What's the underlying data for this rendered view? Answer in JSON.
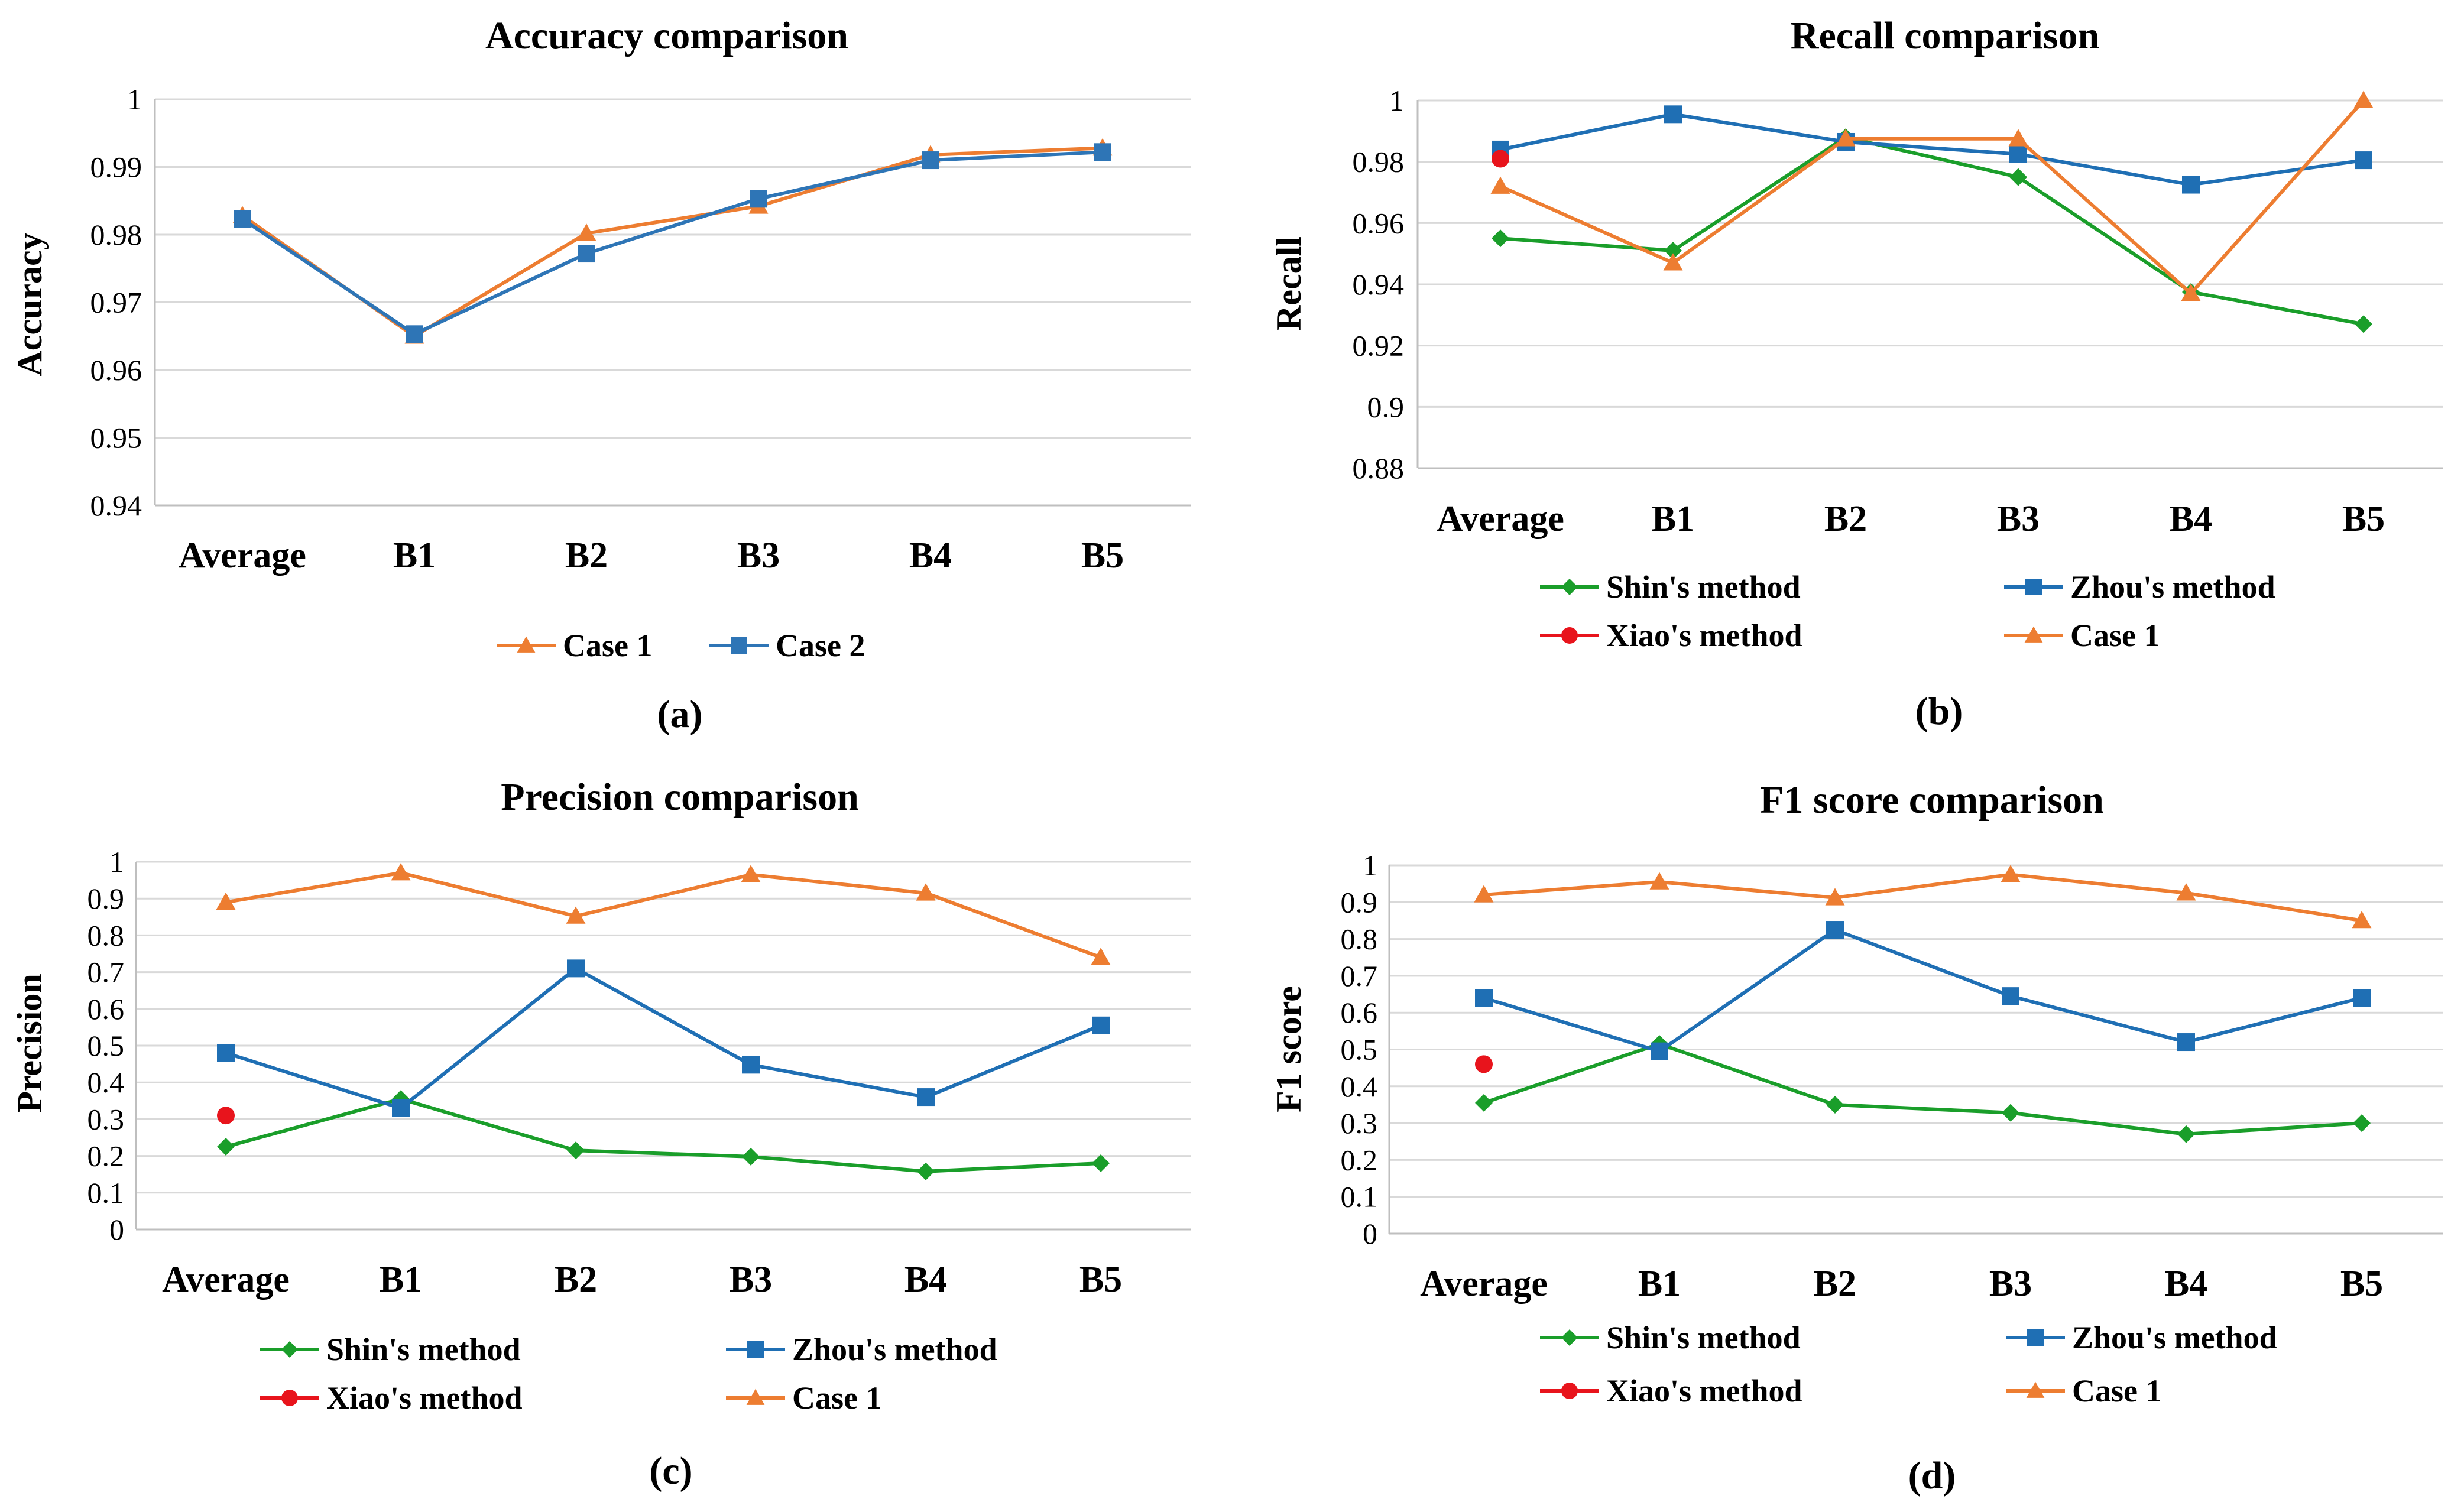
{
  "colors": {
    "case1": "#ED7D31",
    "case2": "#2E75B6",
    "zhou": "#1F6FB4",
    "shin": "#1A9E2A",
    "xiao": "#E8141C",
    "grid": "#D9D9D9"
  },
  "chart_data": [
    {
      "id": "a",
      "type": "line",
      "title": "Accuracy comparison",
      "ylabel": "Accuracy",
      "xlabel": "",
      "caption": "(a)",
      "categories": [
        "Average",
        "B1",
        "B2",
        "B3",
        "B4",
        "B5"
      ],
      "ylim": [
        0.94,
        1
      ],
      "yticks": [
        0.94,
        0.95,
        0.96,
        0.97,
        0.98,
        0.99,
        1
      ],
      "ytick_labels": [
        "0.94",
        "0.95",
        "0.96",
        "0.97",
        "0.98",
        "0.99",
        "1"
      ],
      "grid": true,
      "legend_position": "bottom",
      "series": [
        {
          "name": "Case 1",
          "color": "#ED7D31",
          "marker": "triangle",
          "values": [
            0.9828,
            0.965,
            0.9802,
            0.9842,
            0.9918,
            0.9928
          ]
        },
        {
          "name": "Case 2",
          "color": "#2E75B6",
          "marker": "square",
          "values": [
            0.9823,
            0.9653,
            0.9772,
            0.9853,
            0.991,
            0.9922
          ]
        }
      ]
    },
    {
      "id": "b",
      "type": "line",
      "title": "Recall comparison",
      "ylabel": "Recall",
      "xlabel": "",
      "caption": "(b)",
      "categories": [
        "Average",
        "B1",
        "B2",
        "B3",
        "B4",
        "B5"
      ],
      "ylim": [
        0.88,
        1
      ],
      "yticks": [
        0.88,
        0.9,
        0.92,
        0.94,
        0.96,
        0.98,
        1
      ],
      "ytick_labels": [
        "0.88",
        "0.9",
        "0.92",
        "0.94",
        "0.96",
        "0.98",
        "1"
      ],
      "grid": true,
      "legend_position": "bottom",
      "series": [
        {
          "name": "Shin's method",
          "color": "#1A9E2A",
          "marker": "diamond",
          "values": [
            0.955,
            0.951,
            0.988,
            0.975,
            0.9375,
            0.927
          ]
        },
        {
          "name": "Zhou's method",
          "color": "#1F6FB4",
          "marker": "square",
          "values": [
            0.984,
            0.9955,
            0.9865,
            0.9825,
            0.9725,
            0.9805
          ]
        },
        {
          "name": "Xiao's method",
          "color": "#E8141C",
          "marker": "circle",
          "values": [
            0.981,
            null,
            null,
            null,
            null,
            null
          ]
        },
        {
          "name": "Case 1",
          "color": "#ED7D31",
          "marker": "triangle",
          "values": [
            0.972,
            0.947,
            0.9875,
            0.9875,
            0.937,
            1.0
          ]
        }
      ]
    },
    {
      "id": "c",
      "type": "line",
      "title": "Precision comparison",
      "ylabel": "Precision",
      "xlabel": "",
      "caption": "(c)",
      "categories": [
        "Average",
        "B1",
        "B2",
        "B3",
        "B4",
        "B5"
      ],
      "ylim": [
        0,
        1
      ],
      "yticks": [
        0,
        0.1,
        0.2,
        0.3,
        0.4,
        0.5,
        0.6,
        0.7,
        0.8,
        0.9,
        1
      ],
      "ytick_labels": [
        "0",
        "0.1",
        "0.2",
        "0.3",
        "0.4",
        "0.5",
        "0.6",
        "0.7",
        "0.8",
        "0.9",
        "1"
      ],
      "grid": true,
      "legend_position": "bottom",
      "series": [
        {
          "name": "Shin's method",
          "color": "#1A9E2A",
          "marker": "diamond",
          "values": [
            0.225,
            0.355,
            0.215,
            0.198,
            0.158,
            0.18
          ]
        },
        {
          "name": "Zhou's method",
          "color": "#1F6FB4",
          "marker": "square",
          "values": [
            0.48,
            0.33,
            0.71,
            0.448,
            0.36,
            0.555
          ]
        },
        {
          "name": "Xiao's method",
          "color": "#E8141C",
          "marker": "circle",
          "values": [
            0.31,
            null,
            null,
            null,
            null,
            null
          ]
        },
        {
          "name": "Case 1",
          "color": "#ED7D31",
          "marker": "triangle",
          "values": [
            0.89,
            0.97,
            0.852,
            0.965,
            0.915,
            0.74
          ]
        }
      ]
    },
    {
      "id": "d",
      "type": "line",
      "title": "F1 score comparison",
      "ylabel": "F1 score",
      "xlabel": "",
      "caption": "(d)",
      "categories": [
        "Average",
        "B1",
        "B2",
        "B3",
        "B4",
        "B5"
      ],
      "ylim": [
        0,
        1
      ],
      "yticks": [
        0,
        0.1,
        0.2,
        0.3,
        0.4,
        0.5,
        0.6,
        0.7,
        0.8,
        0.9,
        1
      ],
      "ytick_labels": [
        "0",
        "0.1",
        "0.2",
        "0.3",
        "0.4",
        "0.5",
        "0.6",
        "0.7",
        "0.8",
        "0.9",
        "1"
      ],
      "grid": true,
      "legend_position": "bottom",
      "series": [
        {
          "name": "Shin's method",
          "color": "#1A9E2A",
          "marker": "diamond",
          "values": [
            0.355,
            0.515,
            0.35,
            0.328,
            0.27,
            0.3
          ]
        },
        {
          "name": "Zhou's method",
          "color": "#1F6FB4",
          "marker": "square",
          "values": [
            0.64,
            0.495,
            0.825,
            0.645,
            0.52,
            0.64
          ]
        },
        {
          "name": "Xiao's method",
          "color": "#E8141C",
          "marker": "circle",
          "values": [
            0.46,
            null,
            null,
            null,
            null,
            null
          ]
        },
        {
          "name": "Case 1",
          "color": "#ED7D31",
          "marker": "triangle",
          "values": [
            0.92,
            0.955,
            0.912,
            0.975,
            0.925,
            0.85
          ]
        }
      ]
    }
  ]
}
